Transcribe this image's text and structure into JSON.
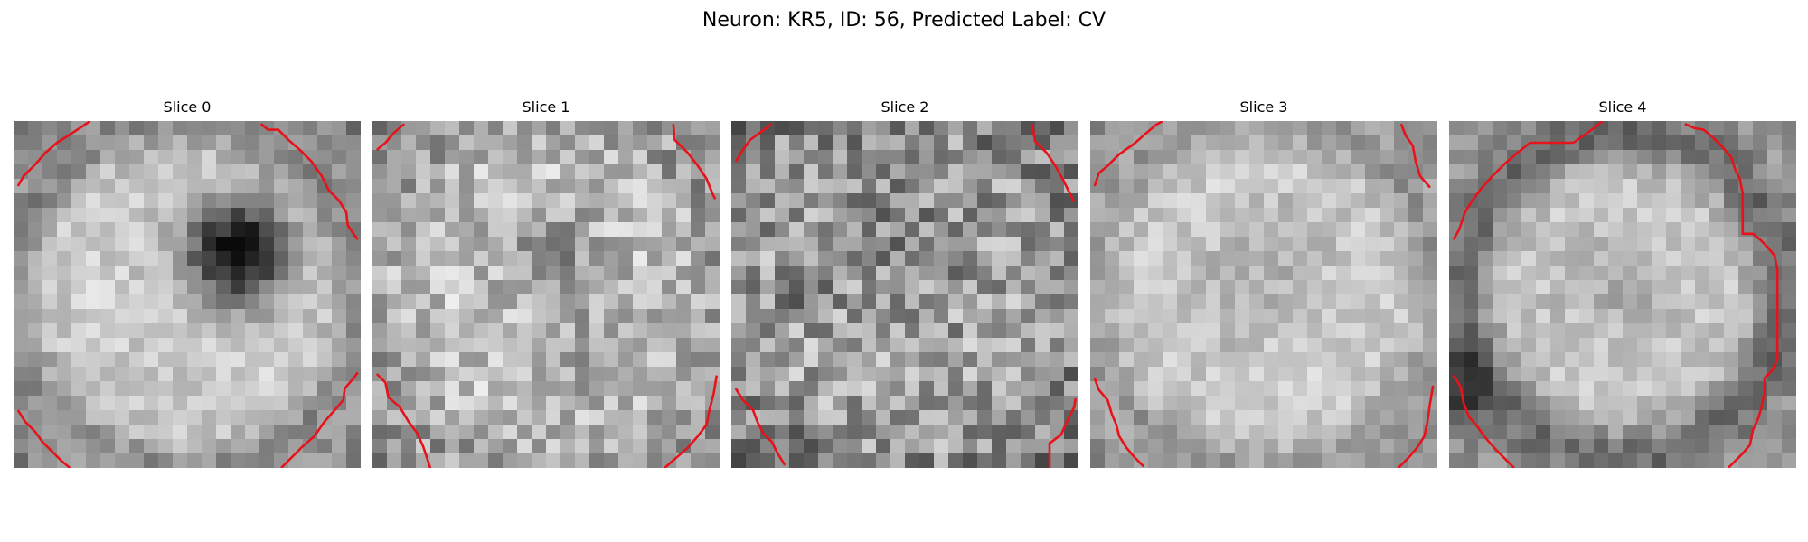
{
  "figure": {
    "title": "Neuron: KR5, ID: 56, Predicted Label: CV"
  },
  "colors": {
    "contour": "#e8121b",
    "colormap": "gray"
  },
  "slices": [
    {
      "label": "Slice 0",
      "feature": "dark-nucleus-center-right"
    },
    {
      "label": "Slice 1",
      "feature": "noisy-faint-dark-center"
    },
    {
      "label": "Slice 2",
      "feature": "noisy-dark"
    },
    {
      "label": "Slice 3",
      "feature": "smooth-light"
    },
    {
      "label": "Slice 4",
      "feature": "ring-with-bright-cell"
    }
  ]
}
